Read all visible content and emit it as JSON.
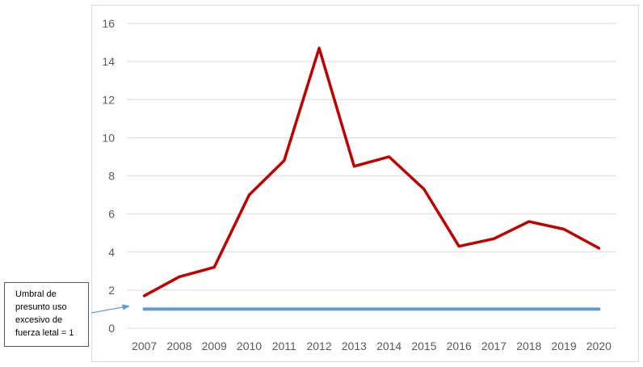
{
  "annotation": {
    "lines": [
      "Umbral de",
      "presunto uso",
      "excesivo de",
      "fuerza letal = 1"
    ]
  },
  "chart_data": {
    "type": "line",
    "title": "",
    "xlabel": "",
    "ylabel": "",
    "categories": [
      "2007",
      "2008",
      "2009",
      "2010",
      "2011",
      "2012",
      "2013",
      "2014",
      "2015",
      "2016",
      "2017",
      "2018",
      "2019",
      "2020"
    ],
    "ylim": [
      0,
      16
    ],
    "yticks": [
      0,
      2,
      4,
      6,
      8,
      10,
      12,
      14,
      16
    ],
    "grid": true,
    "legend": "none",
    "series": [
      {
        "values": [
          1.7,
          2.7,
          3.2,
          7.0,
          8.8,
          14.7,
          8.5,
          9.0,
          7.3,
          4.3,
          4.7,
          5.6,
          5.2,
          4.2
        ],
        "color": "#c00000"
      },
      {
        "values": [
          1,
          1,
          1,
          1,
          1,
          1,
          1,
          1,
          1,
          1,
          1,
          1,
          1,
          1
        ],
        "color": "#5b9bd5"
      }
    ],
    "annotation_arrow_color": "#5b9bd5",
    "gridline_color": "#d9d9d9"
  }
}
